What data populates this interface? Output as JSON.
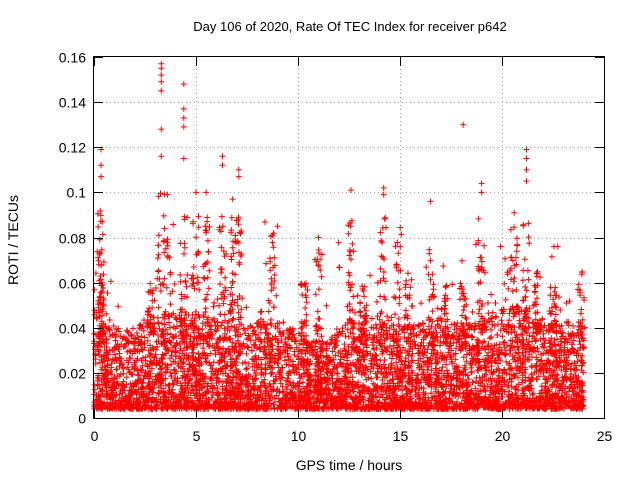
{
  "chart_data": {
    "type": "scatter",
    "title": "Day 106 of 2020, Rate Of TEC Index for receiver p642",
    "xlabel": "GPS time / hours",
    "ylabel": "ROTI / TECUs",
    "xlim": [
      0,
      25
    ],
    "ylim": [
      0,
      0.16
    ],
    "xticks": [
      0,
      5,
      10,
      15,
      20,
      25
    ],
    "yticks": [
      0,
      0.02,
      0.04,
      0.06,
      0.08,
      0.1,
      0.12,
      0.14,
      0.16
    ],
    "xtick_labels": [
      "0",
      "5",
      "10",
      "15",
      "20",
      "25"
    ],
    "ytick_labels": [
      "0",
      "0.02",
      "0.04",
      "0.06",
      "0.08",
      "0.1",
      "0.12",
      "0.14",
      "0.16"
    ],
    "grid": true,
    "marker": "+",
    "color": "#ff0000",
    "series": [
      {
        "name": "ROTI",
        "x_range": [
          0.0,
          24.0
        ],
        "baseline_range": [
          0.004,
          0.035
        ],
        "notable_points": [
          {
            "x": 3.3,
            "y": 0.157
          },
          {
            "x": 3.3,
            "y": 0.155
          },
          {
            "x": 3.3,
            "y": 0.152
          },
          {
            "x": 3.3,
            "y": 0.149
          },
          {
            "x": 3.3,
            "y": 0.145
          },
          {
            "x": 3.3,
            "y": 0.128
          },
          {
            "x": 3.3,
            "y": 0.116
          },
          {
            "x": 4.4,
            "y": 0.148
          },
          {
            "x": 4.4,
            "y": 0.137
          },
          {
            "x": 4.4,
            "y": 0.133
          },
          {
            "x": 4.4,
            "y": 0.129
          },
          {
            "x": 4.4,
            "y": 0.115
          },
          {
            "x": 0.35,
            "y": 0.119
          },
          {
            "x": 0.35,
            "y": 0.112
          },
          {
            "x": 0.35,
            "y": 0.107
          },
          {
            "x": 6.3,
            "y": 0.116
          },
          {
            "x": 6.3,
            "y": 0.112
          },
          {
            "x": 7.1,
            "y": 0.11
          },
          {
            "x": 7.1,
            "y": 0.107
          },
          {
            "x": 18.1,
            "y": 0.13
          },
          {
            "x": 21.2,
            "y": 0.119
          },
          {
            "x": 21.2,
            "y": 0.115
          },
          {
            "x": 21.2,
            "y": 0.11
          },
          {
            "x": 21.2,
            "y": 0.105
          },
          {
            "x": 19.0,
            "y": 0.104
          },
          {
            "x": 19.0,
            "y": 0.1
          },
          {
            "x": 12.6,
            "y": 0.101
          },
          {
            "x": 14.2,
            "y": 0.102
          },
          {
            "x": 14.2,
            "y": 0.099
          },
          {
            "x": 16.5,
            "y": 0.096
          },
          {
            "x": 3.6,
            "y": 0.099
          },
          {
            "x": 5.0,
            "y": 0.1
          },
          {
            "x": 5.5,
            "y": 0.1
          },
          {
            "x": 6.8,
            "y": 0.097
          },
          {
            "x": 20.6,
            "y": 0.091
          },
          {
            "x": 11.0,
            "y": 0.08
          },
          {
            "x": 9.0,
            "y": 0.085
          }
        ]
      }
    ]
  }
}
